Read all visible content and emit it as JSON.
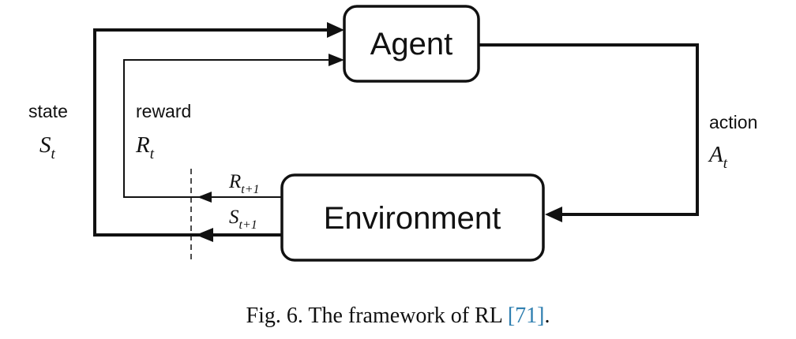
{
  "diagram": {
    "agent_label": "Agent",
    "environment_label": "Environment",
    "state": {
      "label": "state",
      "symbol": "S",
      "sub": "t"
    },
    "reward": {
      "label": "reward",
      "symbol": "R",
      "sub": "t"
    },
    "action": {
      "label": "action",
      "symbol": "A",
      "sub": "t"
    },
    "next_reward": {
      "symbol": "R",
      "sub": "t+1"
    },
    "next_state": {
      "symbol": "S",
      "sub": "t+1"
    }
  },
  "caption": {
    "prefix": "Fig. 6.  The framework of RL ",
    "citation": "[71]",
    "suffix": "."
  }
}
